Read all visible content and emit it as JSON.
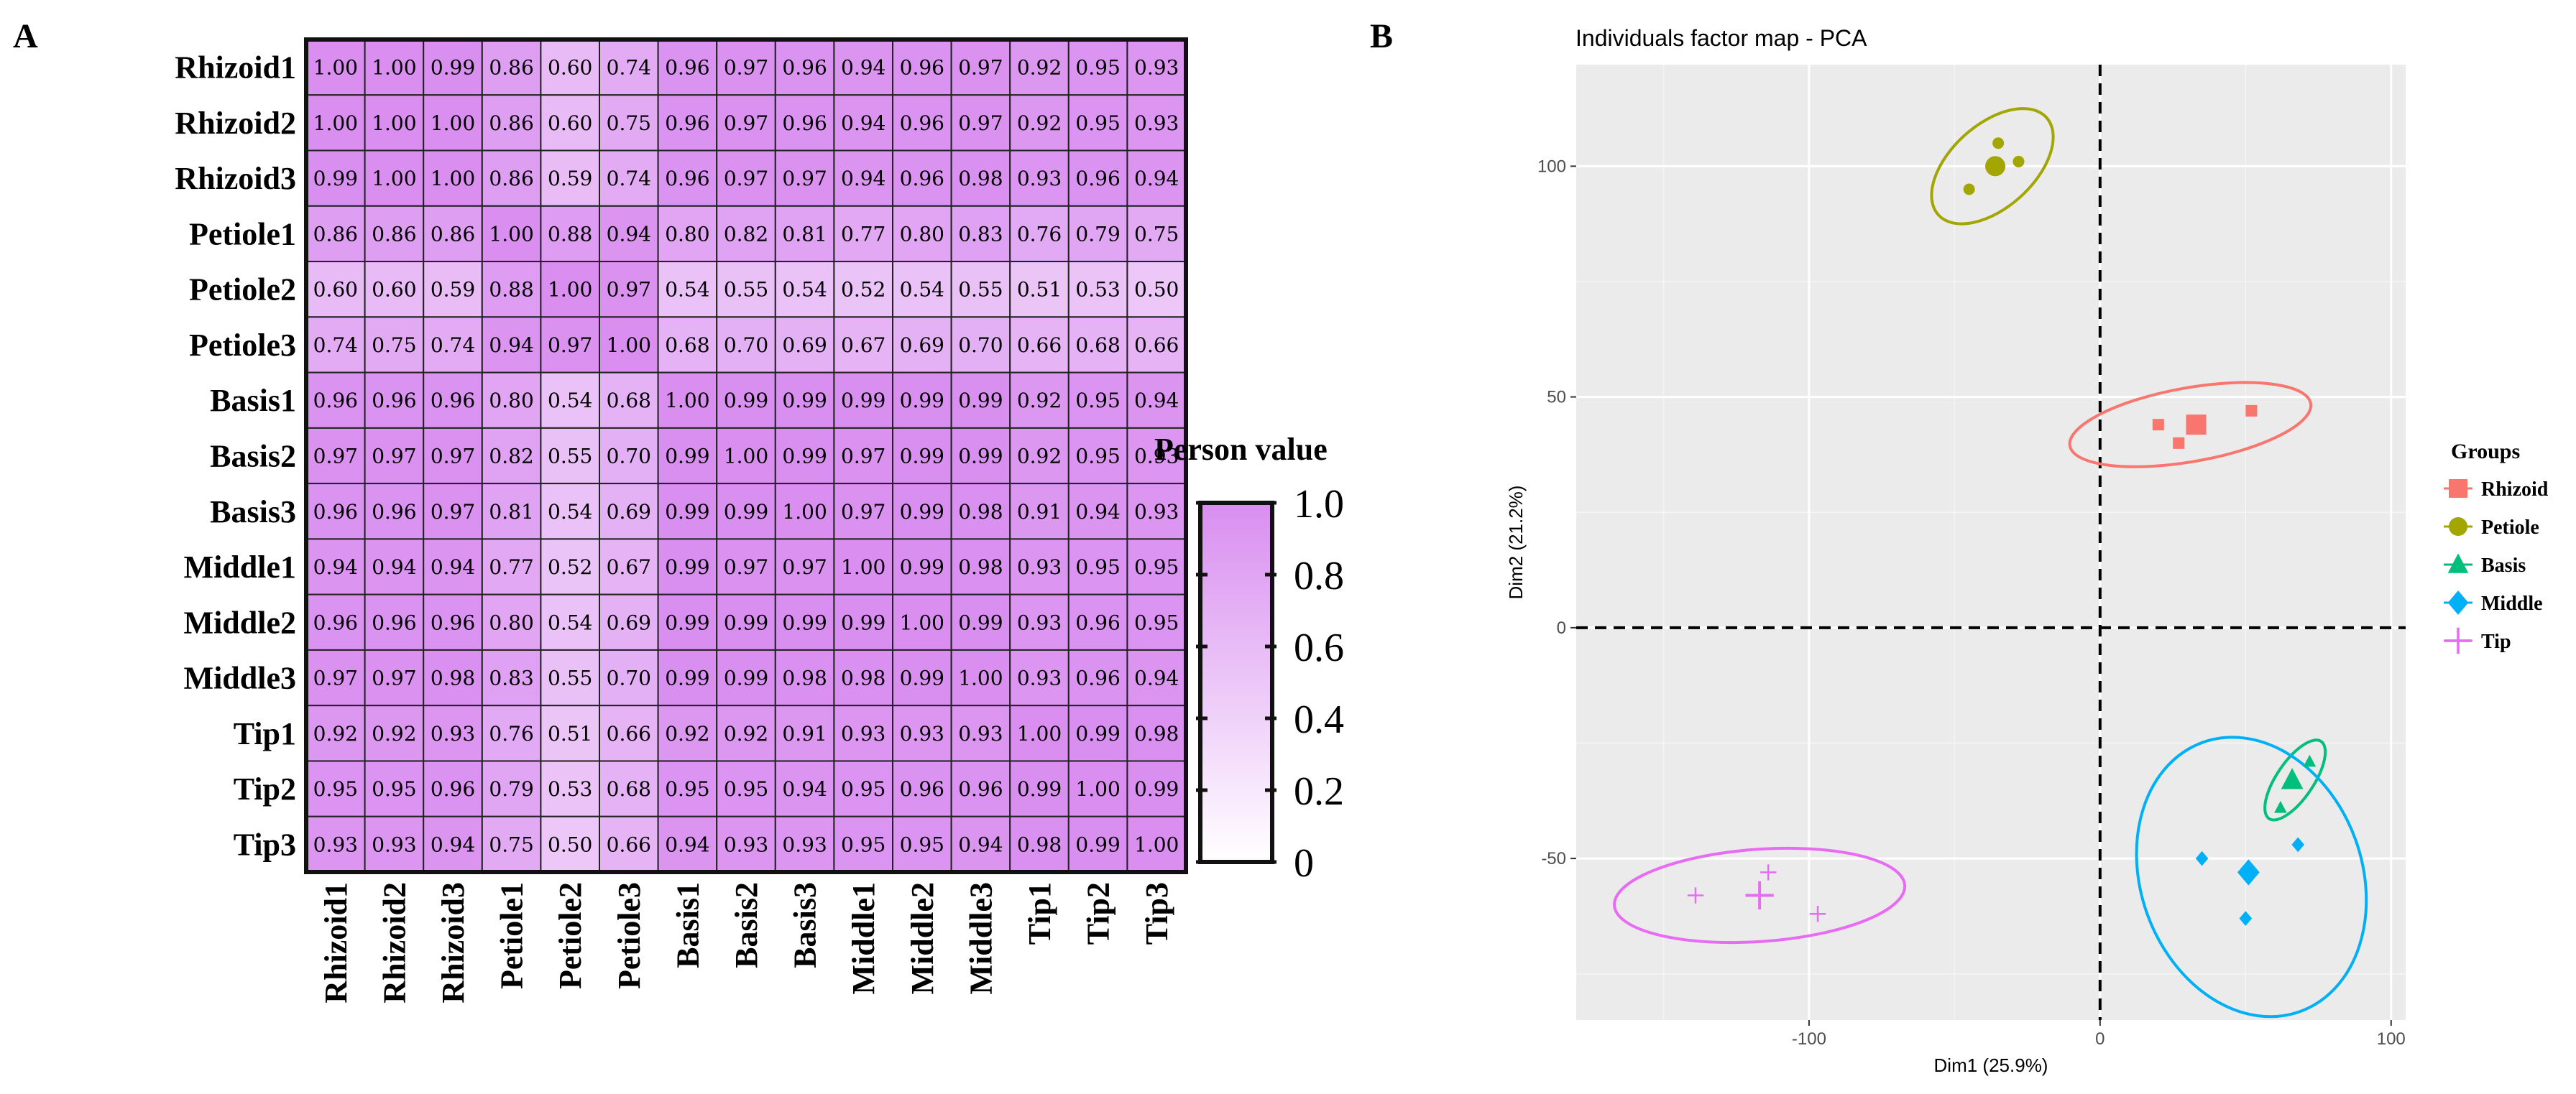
{
  "panels": {
    "a_label": "A",
    "b_label": "B"
  },
  "chart_data": [
    {
      "type": "heatmap",
      "title": "",
      "rows": [
        "Rhizoid1",
        "Rhizoid2",
        "Rhizoid3",
        "Petiole1",
        "Petiole2",
        "Petiole3",
        "Basis1",
        "Basis2",
        "Basis3",
        "Middle1",
        "Middle2",
        "Middle3",
        "Tip1",
        "Tip2",
        "Tip3"
      ],
      "columns": [
        "Rhizoid1",
        "Rhizoid2",
        "Rhizoid3",
        "Petiole1",
        "Petiole2",
        "Petiole3",
        "Basis1",
        "Basis2",
        "Basis3",
        "Middle1",
        "Middle2",
        "Middle3",
        "Tip1",
        "Tip2",
        "Tip3"
      ],
      "values": [
        [
          "1.00",
          "1.00",
          "0.99",
          "0.86",
          "0.60",
          "0.74",
          "0.96",
          "0.97",
          "0.96",
          "0.94",
          "0.96",
          "0.97",
          "0.92",
          "0.95",
          "0.93"
        ],
        [
          "1.00",
          "1.00",
          "1.00",
          "0.86",
          "0.60",
          "0.75",
          "0.96",
          "0.97",
          "0.96",
          "0.94",
          "0.96",
          "0.97",
          "0.92",
          "0.95",
          "0.93"
        ],
        [
          "0.99",
          "1.00",
          "1.00",
          "0.86",
          "0.59",
          "0.74",
          "0.96",
          "0.97",
          "0.97",
          "0.94",
          "0.96",
          "0.98",
          "0.93",
          "0.96",
          "0.94"
        ],
        [
          "0.86",
          "0.86",
          "0.86",
          "1.00",
          "0.88",
          "0.94",
          "0.80",
          "0.82",
          "0.81",
          "0.77",
          "0.80",
          "0.83",
          "0.76",
          "0.79",
          "0.75"
        ],
        [
          "0.60",
          "0.60",
          "0.59",
          "0.88",
          "1.00",
          "0.97",
          "0.54",
          "0.55",
          "0.54",
          "0.52",
          "0.54",
          "0.55",
          "0.51",
          "0.53",
          "0.50"
        ],
        [
          "0.74",
          "0.75",
          "0.74",
          "0.94",
          "0.97",
          "1.00",
          "0.68",
          "0.70",
          "0.69",
          "0.67",
          "0.69",
          "0.70",
          "0.66",
          "0.68",
          "0.66"
        ],
        [
          "0.96",
          "0.96",
          "0.96",
          "0.80",
          "0.54",
          "0.68",
          "1.00",
          "0.99",
          "0.99",
          "0.99",
          "0.99",
          "0.99",
          "0.92",
          "0.95",
          "0.94"
        ],
        [
          "0.97",
          "0.97",
          "0.97",
          "0.82",
          "0.55",
          "0.70",
          "0.99",
          "1.00",
          "0.99",
          "0.97",
          "0.99",
          "0.99",
          "0.92",
          "0.95",
          "0.93"
        ],
        [
          "0.96",
          "0.96",
          "0.97",
          "0.81",
          "0.54",
          "0.69",
          "0.99",
          "0.99",
          "1.00",
          "0.97",
          "0.99",
          "0.98",
          "0.91",
          "0.94",
          "0.93"
        ],
        [
          "0.94",
          "0.94",
          "0.94",
          "0.77",
          "0.52",
          "0.67",
          "0.99",
          "0.97",
          "0.97",
          "1.00",
          "0.99",
          "0.98",
          "0.93",
          "0.95",
          "0.95"
        ],
        [
          "0.96",
          "0.96",
          "0.96",
          "0.80",
          "0.54",
          "0.69",
          "0.99",
          "0.99",
          "0.99",
          "0.99",
          "1.00",
          "0.99",
          "0.93",
          "0.96",
          "0.95"
        ],
        [
          "0.97",
          "0.97",
          "0.98",
          "0.83",
          "0.55",
          "0.70",
          "0.99",
          "0.99",
          "0.98",
          "0.98",
          "0.99",
          "1.00",
          "0.93",
          "0.96",
          "0.94"
        ],
        [
          "0.92",
          "0.92",
          "0.93",
          "0.76",
          "0.51",
          "0.66",
          "0.92",
          "0.92",
          "0.91",
          "0.93",
          "0.93",
          "0.93",
          "1.00",
          "0.99",
          "0.98"
        ],
        [
          "0.95",
          "0.95",
          "0.96",
          "0.79",
          "0.53",
          "0.68",
          "0.95",
          "0.95",
          "0.94",
          "0.95",
          "0.96",
          "0.96",
          "0.99",
          "1.00",
          "0.99"
        ],
        [
          "0.93",
          "0.93",
          "0.94",
          "0.75",
          "0.50",
          "0.66",
          "0.94",
          "0.93",
          "0.93",
          "0.95",
          "0.95",
          "0.94",
          "0.98",
          "0.99",
          "1.00"
        ]
      ],
      "legend": {
        "title": "Person value",
        "ticks": [
          "1.0",
          "0.8",
          "0.6",
          "0.4",
          "0.2",
          "0"
        ],
        "tick_values": [
          1.0,
          0.8,
          0.6,
          0.4,
          0.2,
          0
        ],
        "range": [
          0,
          1
        ]
      },
      "colors": {
        "high": "#d98ef0",
        "low": "#ffffff",
        "grid": "#222222"
      }
    },
    {
      "type": "scatter",
      "title": "Individuals factor map - PCA",
      "xlabel": "Dim1 (25.9%)",
      "ylabel": "Dim2 (21.2%)",
      "xlim": [
        -180,
        105
      ],
      "ylim": [
        -85,
        122
      ],
      "xticks": [
        {
          "v": -100,
          "label": "-100"
        },
        {
          "v": 0,
          "label": "0"
        },
        {
          "v": 100,
          "label": "100"
        }
      ],
      "yticks": [
        {
          "v": -50,
          "label": "-50"
        },
        {
          "v": 0,
          "label": "0"
        },
        {
          "v": 50,
          "label": "50"
        },
        {
          "v": 100,
          "label": "100"
        }
      ],
      "legend_title": "Groups",
      "series": [
        {
          "name": "Rhizoid",
          "color": "#f8766d",
          "shape": "square",
          "points": [
            [
              20,
              44
            ],
            [
              27,
              40
            ],
            [
              52,
              47
            ]
          ],
          "centroid": [
            33,
            44
          ],
          "ellipse": {
            "cx": 31,
            "cy": 44,
            "rx": 42,
            "ry": 8,
            "angle_deg": 10
          }
        },
        {
          "name": "Petiole",
          "color": "#a3a500",
          "shape": "circle",
          "points": [
            [
              -35,
              105
            ],
            [
              -28,
              101
            ],
            [
              -45,
              95
            ]
          ],
          "centroid": [
            -36,
            100
          ],
          "ellipse": {
            "cx": -37,
            "cy": 100,
            "rx": 25,
            "ry": 9,
            "angle_deg": 42
          }
        },
        {
          "name": "Basis",
          "color": "#00bf7d",
          "shape": "triangle",
          "points": [
            [
              72,
              -29
            ],
            [
              62,
              -39
            ]
          ],
          "centroid": [
            66,
            -33
          ],
          "ellipse": {
            "cx": 67,
            "cy": -33,
            "rx": 16,
            "ry": 4,
            "angle_deg": 56
          }
        },
        {
          "name": "Middle",
          "color": "#00b0f6",
          "shape": "diamond",
          "points": [
            [
              35,
              -50
            ],
            [
              68,
              -47
            ],
            [
              50,
              -63
            ]
          ],
          "centroid": [
            51,
            -53
          ],
          "ellipse": {
            "cx": 52,
            "cy": -54,
            "rx": 38,
            "ry": 31,
            "angle_deg": 20
          }
        },
        {
          "name": "Tip",
          "color": "#e76bf3",
          "shape": "plus",
          "points": [
            [
              -114,
              -53
            ],
            [
              -139,
              -58
            ],
            [
              -97,
              -62
            ]
          ],
          "centroid": [
            -117,
            -58
          ],
          "ellipse": {
            "cx": -117,
            "cy": -58,
            "rx": 50,
            "ry": 10,
            "angle_deg": 4
          }
        }
      ]
    }
  ]
}
